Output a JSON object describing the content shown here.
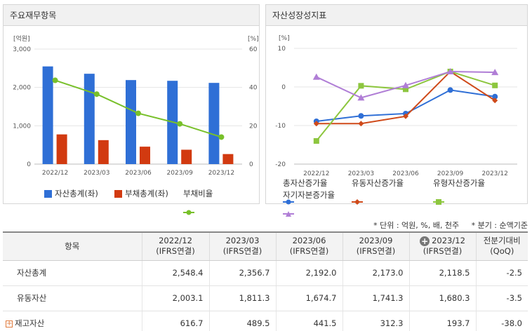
{
  "panels": {
    "left_title": "주요재무항목",
    "right_title": "자산성장성지표"
  },
  "colors": {
    "blue": "#2f6fd6",
    "red": "#d23a10",
    "green": "#78c02a",
    "orange": "#cf4a1a",
    "lime": "#8dc63f",
    "purple": "#b07ed6"
  },
  "chart_data": [
    {
      "type": "bar",
      "categories": [
        "2022/12",
        "2023/03",
        "2023/06",
        "2023/09",
        "2023/12"
      ],
      "y_unit_left": "[억원]",
      "y_unit_right": "[%]",
      "y_ticks_left": [
        "0",
        "1,000",
        "2,000",
        "3,000"
      ],
      "y_ticks_right": [
        "0",
        "20",
        "40",
        "60"
      ],
      "ylim_left": [
        0,
        3000
      ],
      "ylim_right": [
        0,
        60
      ],
      "series": [
        {
          "name": "자산총계(좌)",
          "kind": "bar",
          "axis": "left",
          "color": "#2f6fd6",
          "values": [
            2548.4,
            2356.7,
            2192.0,
            2173.0,
            2118.5
          ]
        },
        {
          "name": "부채총계(좌)",
          "kind": "bar",
          "axis": "left",
          "color": "#d23a10",
          "values": [
            775,
            625,
            455,
            375,
            262
          ]
        },
        {
          "name": "부채비율",
          "kind": "line",
          "axis": "right",
          "color": "#78c02a",
          "values": [
            43.7,
            36.5,
            26.5,
            21.0,
            14.1
          ]
        }
      ],
      "legend": "bottom"
    },
    {
      "type": "line",
      "categories": [
        "2022/12",
        "2023/03",
        "2023/06",
        "2023/09",
        "2023/12"
      ],
      "y_unit": "[%]",
      "y_ticks": [
        "-20",
        "-10",
        "0",
        "10"
      ],
      "ylim": [
        -20,
        10
      ],
      "series": [
        {
          "name": "총자산증가율",
          "marker": "circle",
          "color": "#2f6fd6",
          "values": [
            -8.9,
            -7.5,
            -6.9,
            -0.8,
            -2.5
          ]
        },
        {
          "name": "유동자산증가율",
          "marker": "diamond",
          "color": "#cf4a1a",
          "values": [
            -9.5,
            -9.5,
            -7.6,
            4.0,
            -3.5
          ]
        },
        {
          "name": "유형자산증가율",
          "marker": "square",
          "color": "#8dc63f",
          "values": [
            -14.0,
            0.3,
            -0.6,
            4.0,
            0.4
          ]
        },
        {
          "name": "자기자본증가율",
          "marker": "triangle",
          "color": "#b07ed6",
          "values": [
            2.6,
            -2.8,
            0.4,
            4.0,
            3.8
          ]
        }
      ],
      "legend": "bottom"
    }
  ],
  "notes": {
    "unit": "* 단위 : 억원, %, 배, 천주",
    "quarter": "* 분기 : 순액기준"
  },
  "table": {
    "col_item": "항목",
    "periods": [
      {
        "date": "2022/12",
        "basis": "(IFRS연결)"
      },
      {
        "date": "2023/03",
        "basis": "(IFRS연결)"
      },
      {
        "date": "2023/06",
        "basis": "(IFRS연결)"
      },
      {
        "date": "2023/09",
        "basis": "(IFRS연결)"
      },
      {
        "date": "2023/12",
        "basis": "(IFRS연결)"
      }
    ],
    "col_change": "전분기대비",
    "col_change_sub": "(QoQ)",
    "rows": [
      {
        "label": "자산총계",
        "values": [
          "2,548.4",
          "2,356.7",
          "2,192.0",
          "2,173.0",
          "2,118.5"
        ],
        "change": "-2.5"
      },
      {
        "label": "유동자산",
        "values": [
          "2,003.1",
          "1,811.3",
          "1,674.7",
          "1,741.3",
          "1,680.3"
        ],
        "change": "-3.5"
      },
      {
        "label": "재고자산",
        "values": [
          "616.7",
          "489.5",
          "441.5",
          "312.3",
          "193.7"
        ],
        "change": "-38.0"
      }
    ]
  }
}
